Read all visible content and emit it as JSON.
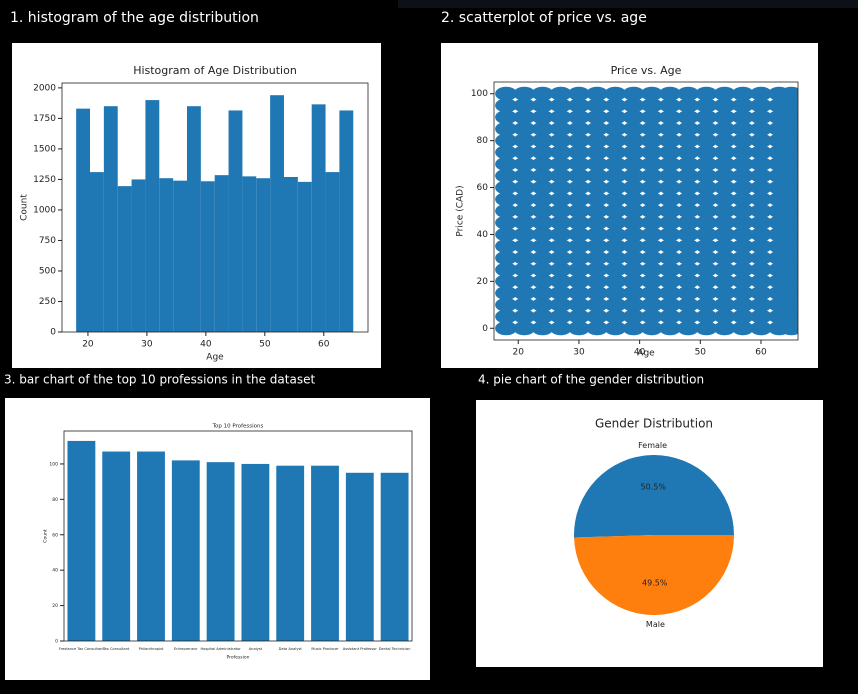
{
  "headings": [
    "1. histogram of the age distribution",
    "2. scatterplot of price vs. age",
    "3. bar chart of the top 10 professions in the dataset",
    "4. pie chart of the gender distribution"
  ],
  "chart_data": [
    {
      "type": "histogram",
      "title": "Histogram of Age Distribution",
      "xlabel": "Age",
      "ylabel": "Count",
      "color": "#1f77b4",
      "bins": [
        18,
        20.35,
        22.7,
        25.05,
        27.4,
        29.75,
        32.1,
        34.45,
        36.8,
        39.15,
        41.5,
        43.85,
        46.2,
        48.55,
        50.9,
        53.25,
        55.6,
        57.95,
        60.3,
        62.65,
        65
      ],
      "counts": [
        1830,
        1310,
        1850,
        1195,
        1250,
        1900,
        1260,
        1240,
        1850,
        1235,
        1285,
        1815,
        1275,
        1260,
        1940,
        1270,
        1230,
        1865,
        1310,
        1815
      ],
      "xlim": [
        15.6,
        67.5
      ],
      "xticks": [
        20,
        30,
        40,
        50,
        60
      ],
      "ylim": [
        0,
        2040
      ],
      "yticks": [
        0,
        250,
        500,
        750,
        1000,
        1250,
        1500,
        1750,
        2000
      ]
    },
    {
      "type": "scatter",
      "title": "Price vs. Age",
      "xlabel": "Age",
      "ylabel": "Price (CAD)",
      "color": "#1f77b4",
      "x": [
        18,
        21,
        24,
        27,
        30,
        33,
        36,
        39,
        42,
        45,
        48,
        51,
        54,
        57,
        60,
        63,
        65,
        18,
        21,
        24,
        27,
        30,
        33,
        36,
        39,
        42,
        45,
        48,
        51,
        54,
        57,
        60,
        63,
        65,
        18,
        21,
        24,
        27,
        30,
        33,
        36,
        39,
        42,
        45,
        48,
        51,
        54,
        57,
        60,
        63,
        65,
        18,
        21,
        24,
        27,
        30,
        33,
        36,
        39,
        42,
        45,
        48,
        51,
        54,
        57,
        60,
        63,
        65,
        18,
        21,
        24,
        27,
        30,
        33,
        36,
        39,
        42,
        45,
        48,
        51,
        54,
        57,
        60,
        63,
        65,
        18,
        21,
        24,
        27,
        30,
        33,
        36,
        39,
        42,
        45,
        48,
        51,
        54,
        57,
        60,
        63,
        65,
        18,
        21,
        24,
        27,
        30,
        33,
        36,
        39,
        42,
        45,
        48,
        51,
        54,
        57,
        60,
        63,
        65,
        18,
        21,
        24,
        27,
        30,
        33,
        36,
        39,
        42,
        45,
        48,
        51,
        54,
        57,
        60,
        63,
        65,
        18,
        21,
        24,
        27,
        30,
        33,
        36,
        39,
        42,
        45,
        48,
        51,
        54,
        57,
        60,
        63,
        65,
        18,
        21,
        24,
        27,
        30,
        33,
        36,
        39,
        42,
        45,
        48,
        51,
        54,
        57,
        60,
        63,
        65,
        18,
        21,
        24,
        27,
        30,
        33,
        36,
        39,
        42,
        45,
        48,
        51,
        54,
        57,
        60,
        63,
        65,
        18,
        21,
        24,
        27,
        30,
        33,
        36,
        39,
        42,
        45,
        48,
        51,
        54,
        57,
        60,
        63,
        65,
        18,
        21,
        24,
        27,
        30,
        33,
        36,
        39,
        42,
        45,
        48,
        51,
        54,
        57,
        60,
        63,
        65,
        18,
        21,
        24,
        27,
        30,
        33,
        36,
        39,
        42,
        45,
        48,
        51,
        54,
        57,
        60,
        63,
        65,
        18,
        21,
        24,
        27,
        30,
        33,
        36,
        39,
        42,
        45,
        48,
        51,
        54,
        57,
        60,
        63,
        65,
        18,
        21,
        24,
        27,
        30,
        33,
        36,
        39,
        42,
        45,
        48,
        51,
        54,
        57,
        60,
        63,
        65,
        18,
        21,
        24,
        27,
        30,
        33,
        36,
        39,
        42,
        45,
        48,
        51,
        54,
        57,
        60,
        63,
        65,
        18,
        21,
        24,
        27,
        30,
        33,
        36,
        39,
        42,
        45,
        48,
        51,
        54,
        57,
        60,
        63,
        65,
        18,
        21,
        24,
        27,
        30,
        33,
        36,
        39,
        42,
        45,
        48,
        51,
        54,
        57,
        60,
        63,
        65,
        18,
        21,
        24,
        27,
        30,
        33,
        36,
        39,
        42,
        45,
        48,
        51,
        54,
        57,
        60,
        63,
        65,
        18,
        21,
        24,
        27,
        30,
        33,
        36,
        39,
        42,
        45,
        48,
        51,
        54,
        57,
        60,
        63,
        65
      ],
      "y": [
        0,
        0,
        0,
        0,
        0,
        0,
        0,
        0,
        0,
        0,
        0,
        0,
        0,
        0,
        0,
        0,
        0,
        5,
        5,
        5,
        5,
        5,
        5,
        5,
        5,
        5,
        5,
        5,
        5,
        5,
        5,
        5,
        5,
        5,
        10,
        10,
        10,
        10,
        10,
        10,
        10,
        10,
        10,
        10,
        10,
        10,
        10,
        10,
        10,
        10,
        10,
        15,
        15,
        15,
        15,
        15,
        15,
        15,
        15,
        15,
        15,
        15,
        15,
        15,
        15,
        15,
        15,
        15,
        20,
        20,
        20,
        20,
        20,
        20,
        20,
        20,
        20,
        20,
        20,
        20,
        20,
        20,
        20,
        20,
        20,
        25,
        25,
        25,
        25,
        25,
        25,
        25,
        25,
        25,
        25,
        25,
        25,
        25,
        25,
        25,
        25,
        25,
        30,
        30,
        30,
        30,
        30,
        30,
        30,
        30,
        30,
        30,
        30,
        30,
        30,
        30,
        30,
        30,
        30,
        35,
        35,
        35,
        35,
        35,
        35,
        35,
        35,
        35,
        35,
        35,
        35,
        35,
        35,
        35,
        35,
        35,
        40,
        40,
        40,
        40,
        40,
        40,
        40,
        40,
        40,
        40,
        40,
        40,
        40,
        40,
        40,
        40,
        40,
        45,
        45,
        45,
        45,
        45,
        45,
        45,
        45,
        45,
        45,
        45,
        45,
        45,
        45,
        45,
        45,
        45,
        50,
        50,
        50,
        50,
        50,
        50,
        50,
        50,
        50,
        50,
        50,
        50,
        50,
        50,
        50,
        50,
        50,
        55,
        55,
        55,
        55,
        55,
        55,
        55,
        55,
        55,
        55,
        55,
        55,
        55,
        55,
        55,
        55,
        55,
        60,
        60,
        60,
        60,
        60,
        60,
        60,
        60,
        60,
        60,
        60,
        60,
        60,
        60,
        60,
        60,
        60,
        65,
        65,
        65,
        65,
        65,
        65,
        65,
        65,
        65,
        65,
        65,
        65,
        65,
        65,
        65,
        65,
        65,
        70,
        70,
        70,
        70,
        70,
        70,
        70,
        70,
        70,
        70,
        70,
        70,
        70,
        70,
        70,
        70,
        70,
        75,
        75,
        75,
        75,
        75,
        75,
        75,
        75,
        75,
        75,
        75,
        75,
        75,
        75,
        75,
        75,
        75,
        80,
        80,
        80,
        80,
        80,
        80,
        80,
        80,
        80,
        80,
        80,
        80,
        80,
        80,
        80,
        80,
        80,
        85,
        85,
        85,
        85,
        85,
        85,
        85,
        85,
        85,
        85,
        85,
        85,
        85,
        85,
        85,
        85,
        85,
        90,
        90,
        90,
        90,
        90,
        90,
        90,
        90,
        90,
        90,
        90,
        90,
        90,
        90,
        90,
        90,
        90,
        95,
        95,
        95,
        95,
        95,
        95,
        95,
        95,
        95,
        95,
        95,
        95,
        95,
        95,
        95,
        95,
        95,
        100,
        100,
        100,
        100,
        100,
        100,
        100,
        100,
        100,
        100,
        100,
        100,
        100,
        100,
        100,
        100,
        100
      ],
      "xlim": [
        16,
        66.1
      ],
      "xticks": [
        20,
        30,
        40,
        50,
        60
      ],
      "ylim": [
        -5,
        105
      ],
      "yticks": [
        0,
        20,
        40,
        60,
        80,
        100
      ]
    },
    {
      "type": "bar",
      "title": "Top 10 Professions",
      "xlabel": "Profession",
      "ylabel": "Count",
      "color": "#1f77b4",
      "categories": [
        "Freelance Tax Consultant",
        "Tax Consultant",
        "Philanthropist",
        "Entrepreneur",
        "Hospital Administrator",
        "Analyst",
        "Data Analyst",
        "Music Producer",
        "Assistant Professor",
        "Dental Technician"
      ],
      "values": [
        113,
        107,
        107,
        102,
        101,
        100,
        99,
        99,
        95,
        95
      ],
      "ylim": [
        0,
        118.6
      ],
      "yticks": [
        0,
        20,
        40,
        60,
        80,
        100
      ]
    },
    {
      "type": "pie",
      "title": "Gender Distribution",
      "categories": [
        "Female",
        "Male"
      ],
      "values": [
        50.5,
        49.5
      ],
      "value_labels": [
        "50.5%",
        "49.5%"
      ],
      "colors": [
        "#1f77b4",
        "#ff7f0e"
      ]
    }
  ]
}
